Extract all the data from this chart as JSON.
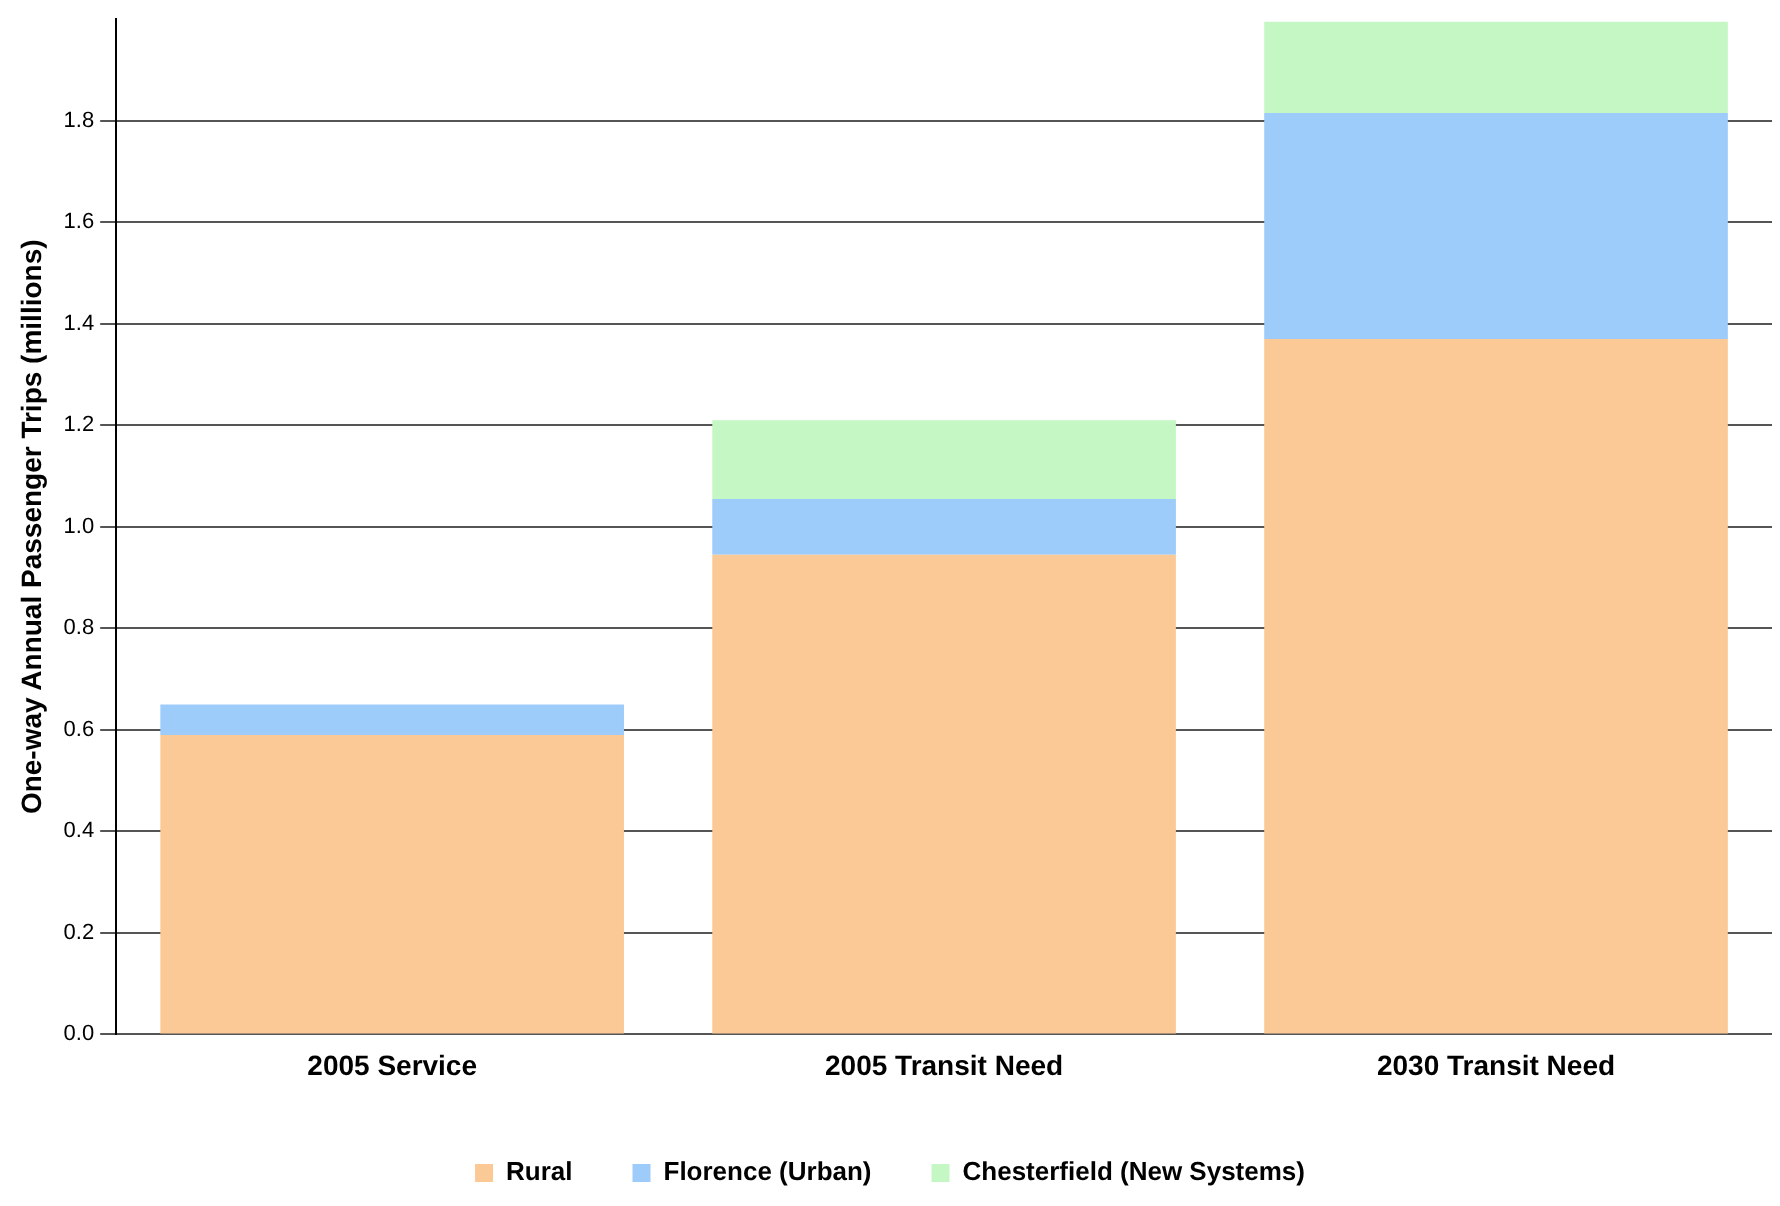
{
  "chart_data": {
    "type": "bar",
    "stacked": true,
    "ylabel": "One-way Annual Passenger Trips (millions)",
    "categories": [
      "2005 Service",
      "2005 Transit Need",
      "2030 Transit Need"
    ],
    "series": [
      {
        "name": "Rural",
        "color": "#fbc995",
        "values": [
          0.59,
          0.945,
          1.37
        ]
      },
      {
        "name": "Florence (Urban)",
        "color": "#9dcbfa",
        "values": [
          0.06,
          0.11,
          0.445
        ]
      },
      {
        "name": "Chesterfield (New Systems)",
        "color": "#c5f7c5",
        "values": [
          0,
          0.155,
          0.18
        ]
      }
    ],
    "ylim": [
      0,
      2.0
    ],
    "yticks": [
      {
        "value": 0,
        "label": "0.0"
      },
      {
        "value": 0.2,
        "label": "0.2"
      },
      {
        "value": 0.4,
        "label": "0.4"
      },
      {
        "value": 0.6,
        "label": "0.6"
      },
      {
        "value": 0.8,
        "label": "0.8"
      },
      {
        "value": 1.0,
        "label": "1.0"
      },
      {
        "value": 1.2,
        "label": "1.2"
      },
      {
        "value": 1.4,
        "label": "1.4"
      },
      {
        "value": 1.6,
        "label": "1.6"
      },
      {
        "value": 1.8,
        "label": "1.8"
      }
    ],
    "grid": "y",
    "legend": "bottom"
  }
}
